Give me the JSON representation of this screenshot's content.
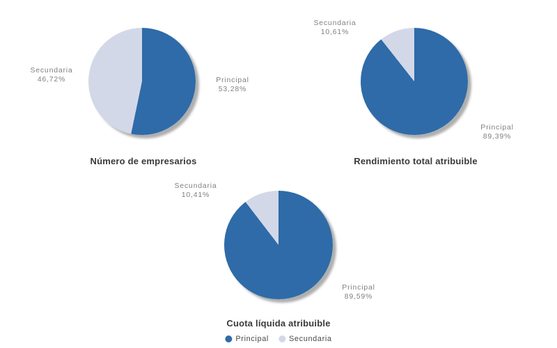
{
  "colors": {
    "principal": "#2E6BA8",
    "secundaria": "#D3D8E8",
    "shadow": "#6E6E6E",
    "title_text": "#3A3A3A",
    "label_text": "#808080",
    "legend_text": "#4A4A4A",
    "background": "#FFFFFF"
  },
  "legend": {
    "items": [
      {
        "label": "Principal",
        "color": "#2E6BA8"
      },
      {
        "label": "Secundaria",
        "color": "#D3D8E8"
      }
    ]
  },
  "chart_data": [
    {
      "type": "pie",
      "title": "Número de empresarios",
      "labels": [
        "Principal",
        "Secundaria"
      ],
      "values": [
        53.28,
        46.72
      ],
      "value_labels": [
        "53,28%",
        "46,72%"
      ],
      "colors": [
        "#2E6BA8",
        "#D3D8E8"
      ],
      "start_angle_deg": 0,
      "direction": "clockwise",
      "legend_position": "none"
    },
    {
      "type": "pie",
      "title": "Rendimiento total atribuible",
      "labels": [
        "Principal",
        "Secundaria"
      ],
      "values": [
        89.39,
        10.61
      ],
      "value_labels": [
        "89,39%",
        "10,61%"
      ],
      "colors": [
        "#2E6BA8",
        "#D3D8E8"
      ],
      "start_angle_deg": 0,
      "direction": "clockwise",
      "legend_position": "none"
    },
    {
      "type": "pie",
      "title": "Cuota líquida atribuible",
      "labels": [
        "Principal",
        "Secundaria"
      ],
      "values": [
        89.59,
        10.41
      ],
      "value_labels": [
        "89,59%",
        "10,41%"
      ],
      "colors": [
        "#2E6BA8",
        "#D3D8E8"
      ],
      "start_angle_deg": 0,
      "direction": "clockwise",
      "legend_position": "bottom"
    }
  ]
}
